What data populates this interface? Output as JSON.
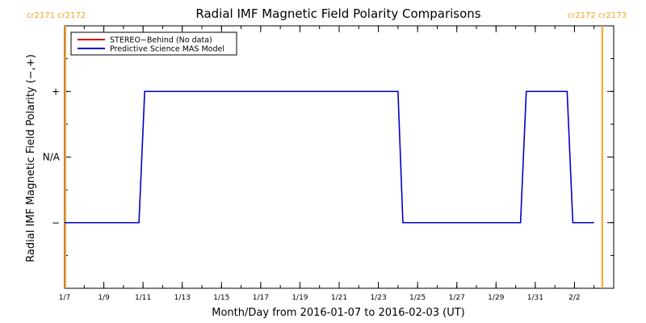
{
  "chart_data": {
    "type": "line",
    "title": "Radial IMF Magnetic Field Polarity Comparisons",
    "xlabel": "Month/Day from 2016-01-07 to 2016-02-03 (UT)",
    "ylabel": "Radial IMF Magnetic Field Polarity (−,+)",
    "x_unit": "date",
    "xlim": [
      "2016-01-07",
      "2016-02-03"
    ],
    "x_ticks": [
      "1/7",
      "1/9",
      "1/11",
      "1/13",
      "1/15",
      "1/17",
      "1/19",
      "1/21",
      "1/23",
      "1/25",
      "1/27",
      "1/29",
      "1/31",
      "2/2"
    ],
    "y_levels": [
      {
        "value": 1,
        "label": "+"
      },
      {
        "value": 0,
        "label": "N/A"
      },
      {
        "value": -1,
        "label": "−"
      }
    ],
    "ylim": [
      -2,
      2
    ],
    "legend": {
      "position": "top-left",
      "entries": [
        {
          "name": "STEREO−Behind (No data)",
          "color": "#cc0000"
        },
        {
          "name": "Predictive Science MAS Model",
          "color": "#0000cc"
        }
      ]
    },
    "series": [
      {
        "name": "Predictive Science MAS Model",
        "color": "#0000cc",
        "points": [
          {
            "x": "2016-01-07 00:00",
            "y": -1
          },
          {
            "x": "2016-01-10 19:00",
            "y": -1
          },
          {
            "x": "2016-01-11 02:00",
            "y": 1
          },
          {
            "x": "2016-01-24 00:00",
            "y": 1
          },
          {
            "x": "2016-01-24 06:00",
            "y": -1
          },
          {
            "x": "2016-01-30 06:00",
            "y": -1
          },
          {
            "x": "2016-01-30 13:00",
            "y": 1
          },
          {
            "x": "2016-02-01 15:00",
            "y": 1
          },
          {
            "x": "2016-02-01 22:00",
            "y": -1
          },
          {
            "x": "2016-02-03 00:00",
            "y": -1
          }
        ]
      }
    ],
    "carrington_markers": [
      {
        "x": "2016-01-07 01:00",
        "label": "cr2171 cr2172",
        "label_align": "left",
        "color": "#f6a121"
      },
      {
        "x": "2016-02-03 10:00",
        "label": "cr2172 cr2173",
        "label_align": "right",
        "color": "#f6a121"
      }
    ]
  }
}
